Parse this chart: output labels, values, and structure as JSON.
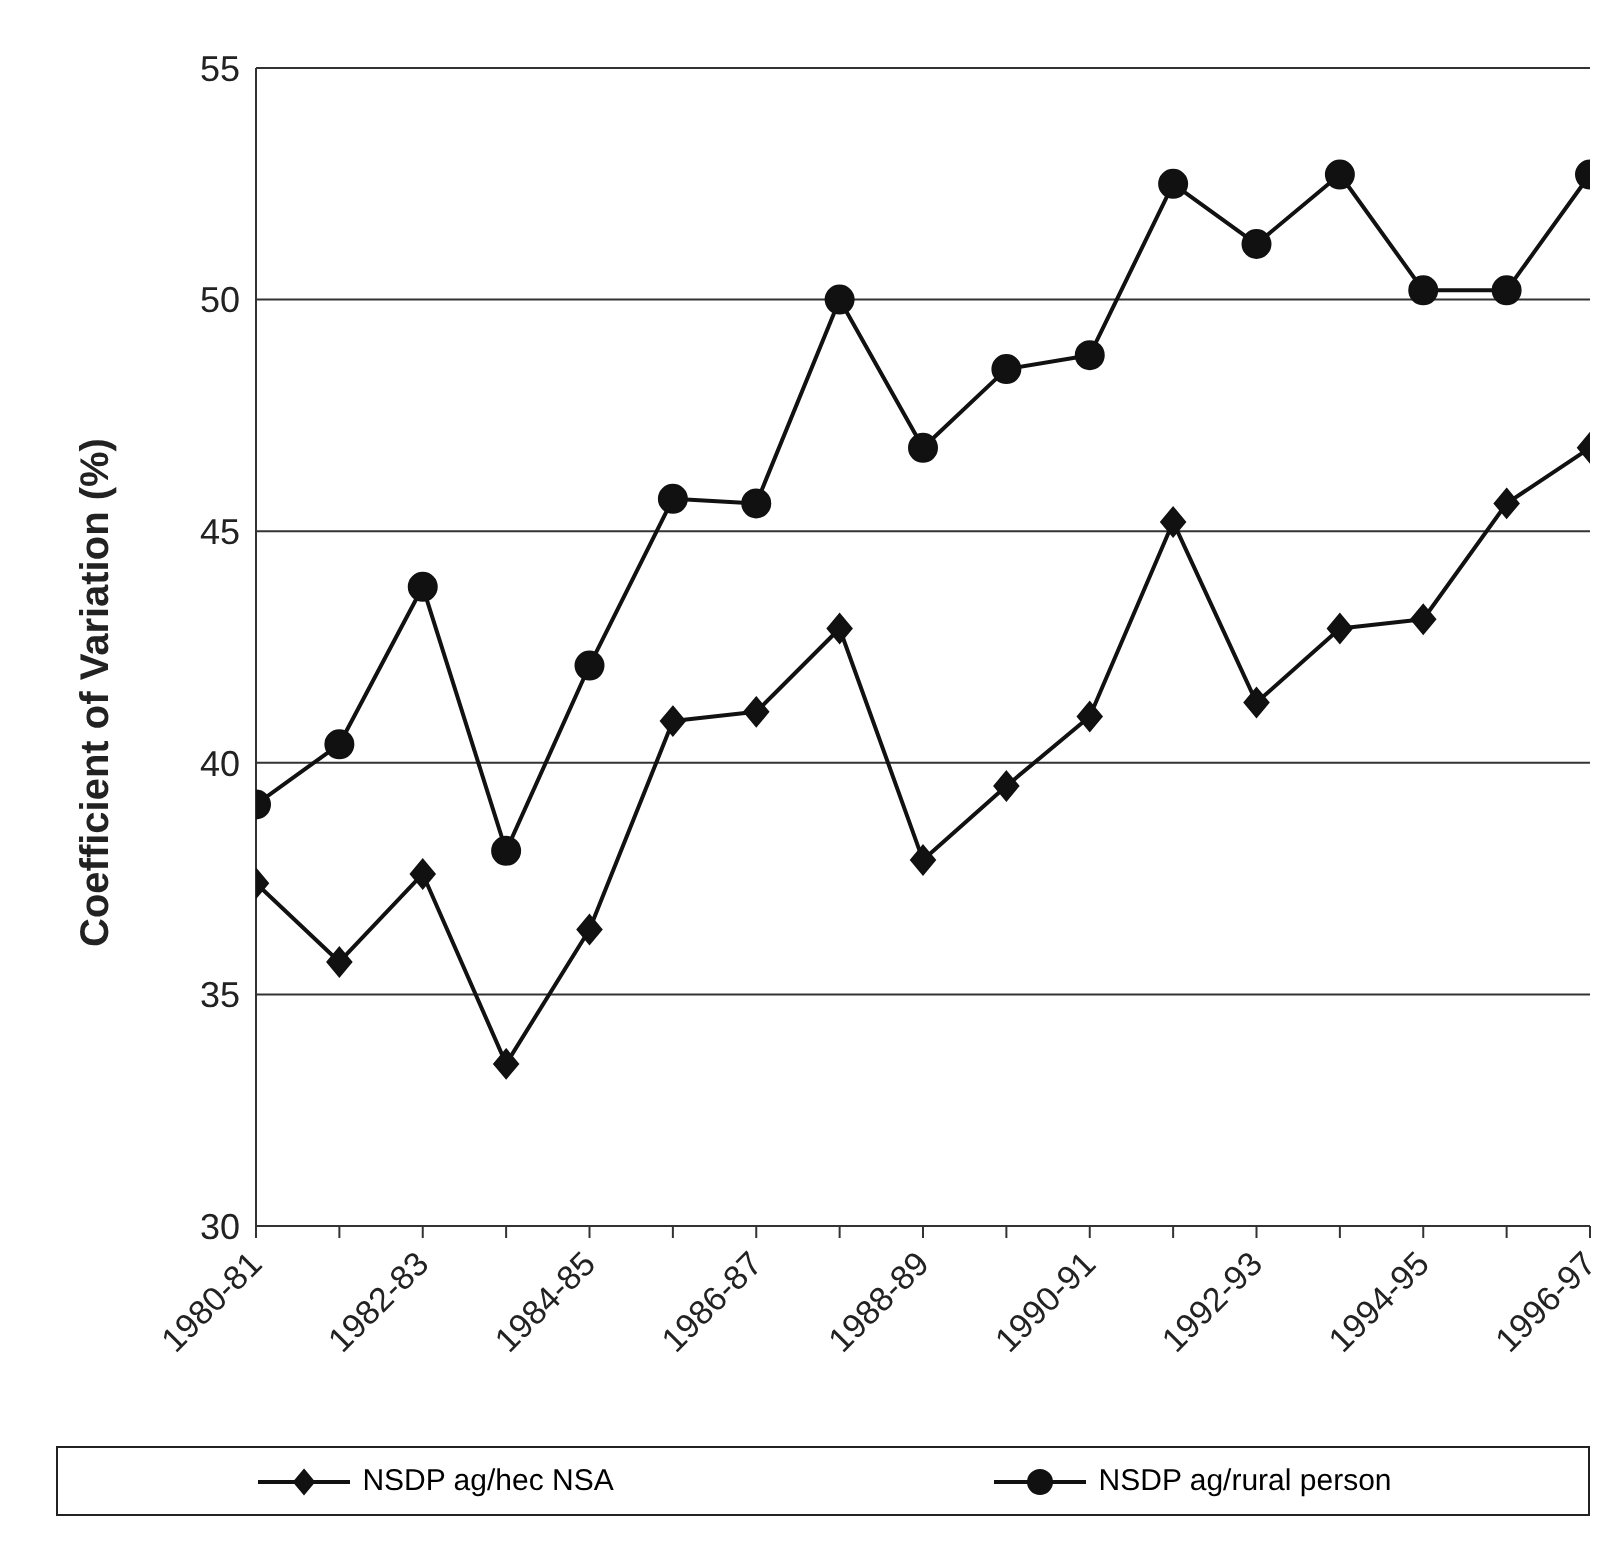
{
  "chart_data": {
    "type": "line",
    "ylabel": "Coefficient of Variation (%)",
    "categories": [
      "1980-81",
      null,
      "1982-83",
      null,
      "1984-85",
      null,
      "1986-87",
      null,
      "1988-89",
      null,
      "1990-91",
      null,
      "1992-93",
      null,
      "1994-95",
      null,
      "1996-97"
    ],
    "series": [
      {
        "name": "NSDP ag/hec NSA",
        "color": "#111111",
        "marker": "diamond",
        "values": [
          37.4,
          35.7,
          37.6,
          33.5,
          36.4,
          40.9,
          41.1,
          42.9,
          37.9,
          39.5,
          41.0,
          45.2,
          41.3,
          42.9,
          43.1,
          45.6,
          46.8
        ]
      },
      {
        "name": "NSDP ag/rural person",
        "color": "#111111",
        "marker": "circle",
        "values": [
          39.1,
          40.4,
          43.8,
          38.1,
          42.1,
          45.7,
          45.6,
          50.0,
          46.8,
          48.5,
          48.8,
          52.5,
          51.2,
          52.7,
          50.2,
          50.2,
          52.7
        ]
      }
    ],
    "ylim": [
      30,
      55
    ],
    "yticks": [
      30,
      35,
      40,
      45,
      50,
      55
    ],
    "grid": "y",
    "legend": "bottom",
    "line_style": "solid"
  }
}
